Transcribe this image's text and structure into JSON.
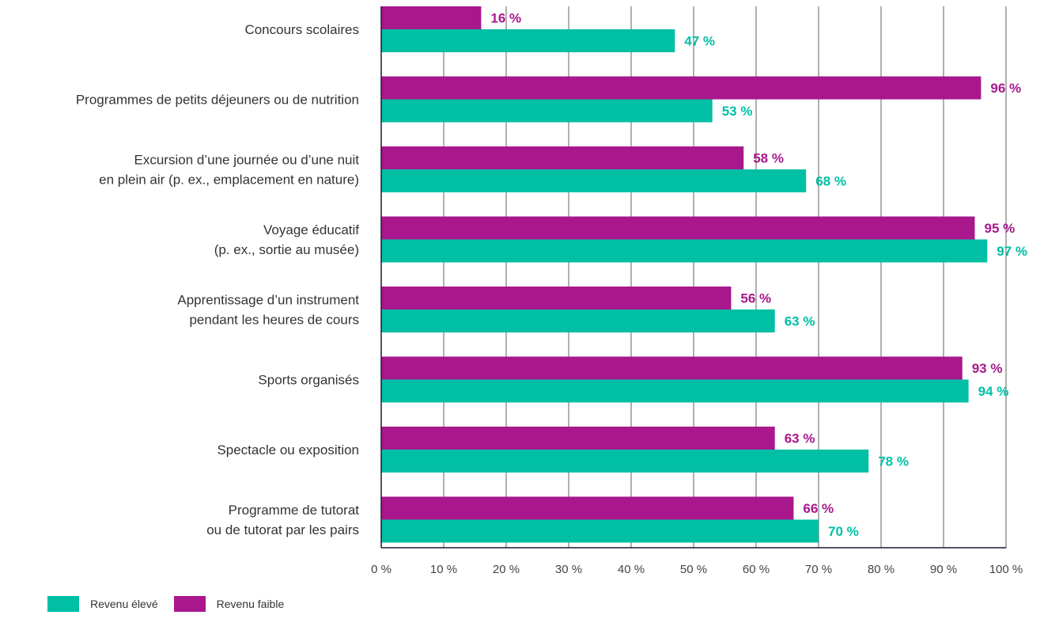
{
  "colors": {
    "high": "#00bfa5",
    "low": "#a8188c"
  },
  "legend": {
    "high_label": "Revenu élevé",
    "low_label": "Revenu faible"
  },
  "chart_data": {
    "type": "bar",
    "orientation": "horizontal",
    "categories": [
      [
        "Concours scolaires"
      ],
      [
        "Programmes de petits déjeuners ou de nutrition"
      ],
      [
        "Excursion d’une journée ou d’une nuit",
        "en plein air (p. ex., emplacement en nature)"
      ],
      [
        "Voyage éducatif",
        "(p. ex., sortie au musée)"
      ],
      [
        "Apprentissage d’un instrument",
        "pendant les heures de cours"
      ],
      [
        "Sports organisés"
      ],
      [
        "Spectacle ou exposition"
      ],
      [
        "Programme de tutorat",
        "ou de tutorat par les pairs"
      ]
    ],
    "series": [
      {
        "name": "Revenu faible",
        "values": [
          16,
          96,
          58,
          95,
          56,
          93,
          63,
          66
        ],
        "labels": [
          "16 %",
          "96 %",
          "58 %",
          "95 %",
          "56 %",
          "93 %",
          "63 %",
          "66 %"
        ]
      },
      {
        "name": "Revenu élevé",
        "values": [
          47,
          53,
          68,
          97,
          63,
          94,
          78,
          70
        ],
        "labels": [
          "47 %",
          "53 %",
          "68 %",
          "97 %",
          "63 %",
          "94 %",
          "78 %",
          "70 %"
        ]
      }
    ],
    "xticks": [
      "0 %",
      "10 %",
      "20 %",
      "30 %",
      "40 %",
      "50 %",
      "60 %",
      "70 %",
      "80 %",
      "90 %",
      "100 %"
    ],
    "xlim": [
      0,
      100
    ],
    "grid": true,
    "legend_position": "bottom-left"
  }
}
